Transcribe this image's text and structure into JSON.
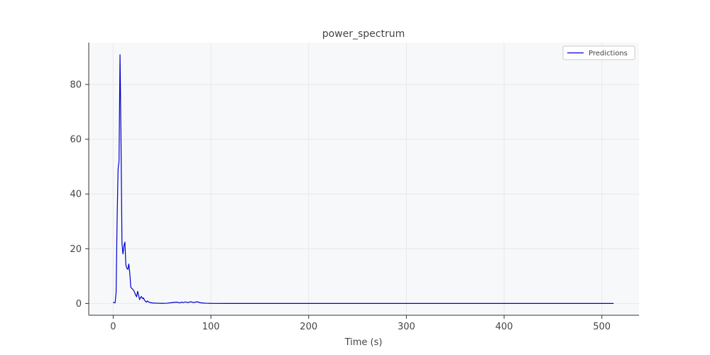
{
  "chart_data": {
    "type": "line",
    "title": "power_spectrum",
    "xlabel": "Time (s)",
    "ylabel": "",
    "xlim": [
      -25,
      538
    ],
    "ylim": [
      -4.3,
      95.3
    ],
    "x_ticks": [
      0,
      100,
      200,
      300,
      400,
      500
    ],
    "y_ticks": [
      0,
      20,
      40,
      60,
      80
    ],
    "grid": true,
    "legend_position": "top-right",
    "series": [
      {
        "name": "Predictions",
        "color": "#0000cc",
        "x": [
          0,
          1,
          2,
          3,
          4,
          5,
          6,
          7,
          8,
          9,
          10,
          11,
          12,
          13,
          14,
          15,
          16,
          17,
          18,
          19,
          20,
          21,
          22,
          23,
          24,
          25,
          26,
          27,
          28,
          29,
          30,
          31,
          32,
          33,
          34,
          35,
          36,
          38,
          40,
          42,
          45,
          50,
          55,
          60,
          65,
          68,
          70,
          72,
          74,
          76,
          78,
          80,
          82,
          84,
          86,
          88,
          90,
          95,
          100,
          120,
          150,
          200,
          250,
          300,
          350,
          400,
          450,
          500,
          512
        ],
        "y": [
          0.5,
          0.2,
          0.3,
          4,
          30,
          49,
          52,
          91,
          60,
          22,
          18,
          21,
          22.5,
          14,
          12.8,
          12.5,
          14.5,
          11,
          6,
          5.5,
          5.2,
          4.8,
          4,
          3,
          2.5,
          4.5,
          3,
          1.5,
          2.2,
          2.5,
          1.8,
          2,
          1.2,
          0.8,
          0.5,
          0.9,
          0.6,
          0.3,
          0.2,
          0.15,
          0.1,
          0.05,
          0.1,
          0.3,
          0.5,
          0.2,
          0.5,
          0.3,
          0.6,
          0.3,
          0.5,
          0.6,
          0.3,
          0.5,
          0.6,
          0.4,
          0.2,
          0.1,
          0.05,
          0.02,
          0.01,
          0.01,
          0.01,
          0.01,
          0.01,
          0.01,
          0.01,
          0.01,
          0.01
        ]
      }
    ]
  }
}
